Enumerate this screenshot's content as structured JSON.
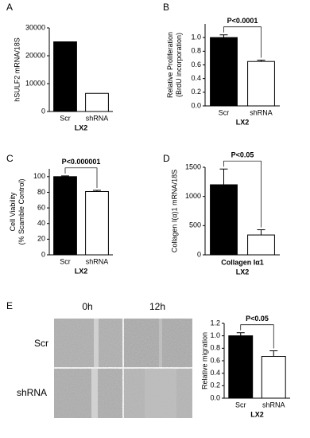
{
  "chart_data": [
    {
      "type": "bar",
      "panel": "A",
      "categories": [
        "Scr",
        "shRNA"
      ],
      "values": [
        25000,
        6500
      ],
      "colors": [
        "#000000",
        "#ffffff"
      ],
      "ylim": [
        0,
        30000
      ],
      "yticks": [
        0,
        10000,
        20000,
        30000
      ],
      "ylabel": [
        "hSULF2 mRNA/18S"
      ],
      "xlabel": [
        "LX2"
      ]
    },
    {
      "type": "bar",
      "panel": "B",
      "categories": [
        "Scr",
        "shRNA"
      ],
      "values": [
        1.0,
        0.65
      ],
      "errors": [
        0.04,
        0.02
      ],
      "colors": [
        "#000000",
        "#ffffff"
      ],
      "ylim": [
        0,
        1.2
      ],
      "yticks": [
        {
          "value": 0,
          "label": "0.0"
        },
        0.2,
        0.4,
        0.6,
        0.8,
        {
          "value": 1,
          "label": "1.0"
        }
      ],
      "ylabel": [
        "Relative Proliferation",
        "(BrdU incorporation)"
      ],
      "xlabel": [
        "LX2"
      ],
      "annotation": "P<0.0001"
    },
    {
      "type": "bar",
      "panel": "C",
      "categories": [
        "Scr",
        "shRNA"
      ],
      "values": [
        100,
        81
      ],
      "errors": [
        1,
        1.5
      ],
      "colors": [
        "#000000",
        "#ffffff"
      ],
      "ylim": [
        0,
        110
      ],
      "yticks": [
        0,
        20,
        40,
        60,
        80,
        100
      ],
      "ylabel": [
        "Cell Viability",
        "(% Scamble Control)"
      ],
      "xlabel": [
        "LX2"
      ],
      "annotation": "P<0.000001"
    },
    {
      "type": "bar",
      "panel": "D",
      "categories": [
        null,
        null
      ],
      "values": [
        1200,
        340
      ],
      "errors": [
        270,
        90
      ],
      "colors": [
        "#000000",
        "#ffffff"
      ],
      "ylim": [
        0,
        1500
      ],
      "yticks": [
        0,
        500,
        1000,
        1500
      ],
      "ylabel": [
        "Collagen I(α)1 mRNA/18S"
      ],
      "xlabel": [
        "Collagen Iα1",
        "LX2"
      ],
      "annotation": "P<0.05"
    },
    {
      "type": "bar",
      "panel": "E",
      "categories": [
        "Scr",
        "shRNA"
      ],
      "values": [
        1.0,
        0.67
      ],
      "errors": [
        0.05,
        0.09
      ],
      "colors": [
        "#000000",
        "#ffffff"
      ],
      "ylim": [
        0,
        1.2
      ],
      "yticks": [
        {
          "value": 0,
          "label": "0.0"
        },
        0.2,
        0.4,
        0.6,
        0.8,
        {
          "value": 1,
          "label": "1.0"
        },
        1.2
      ],
      "ylabel": [
        "Relative migration"
      ],
      "xlabel": [
        "LX2"
      ],
      "annotation": "P<0.05"
    }
  ],
  "image_panel": {
    "columns": [
      "0h",
      "12h"
    ],
    "rows": [
      "Scr",
      "shRNA"
    ]
  }
}
